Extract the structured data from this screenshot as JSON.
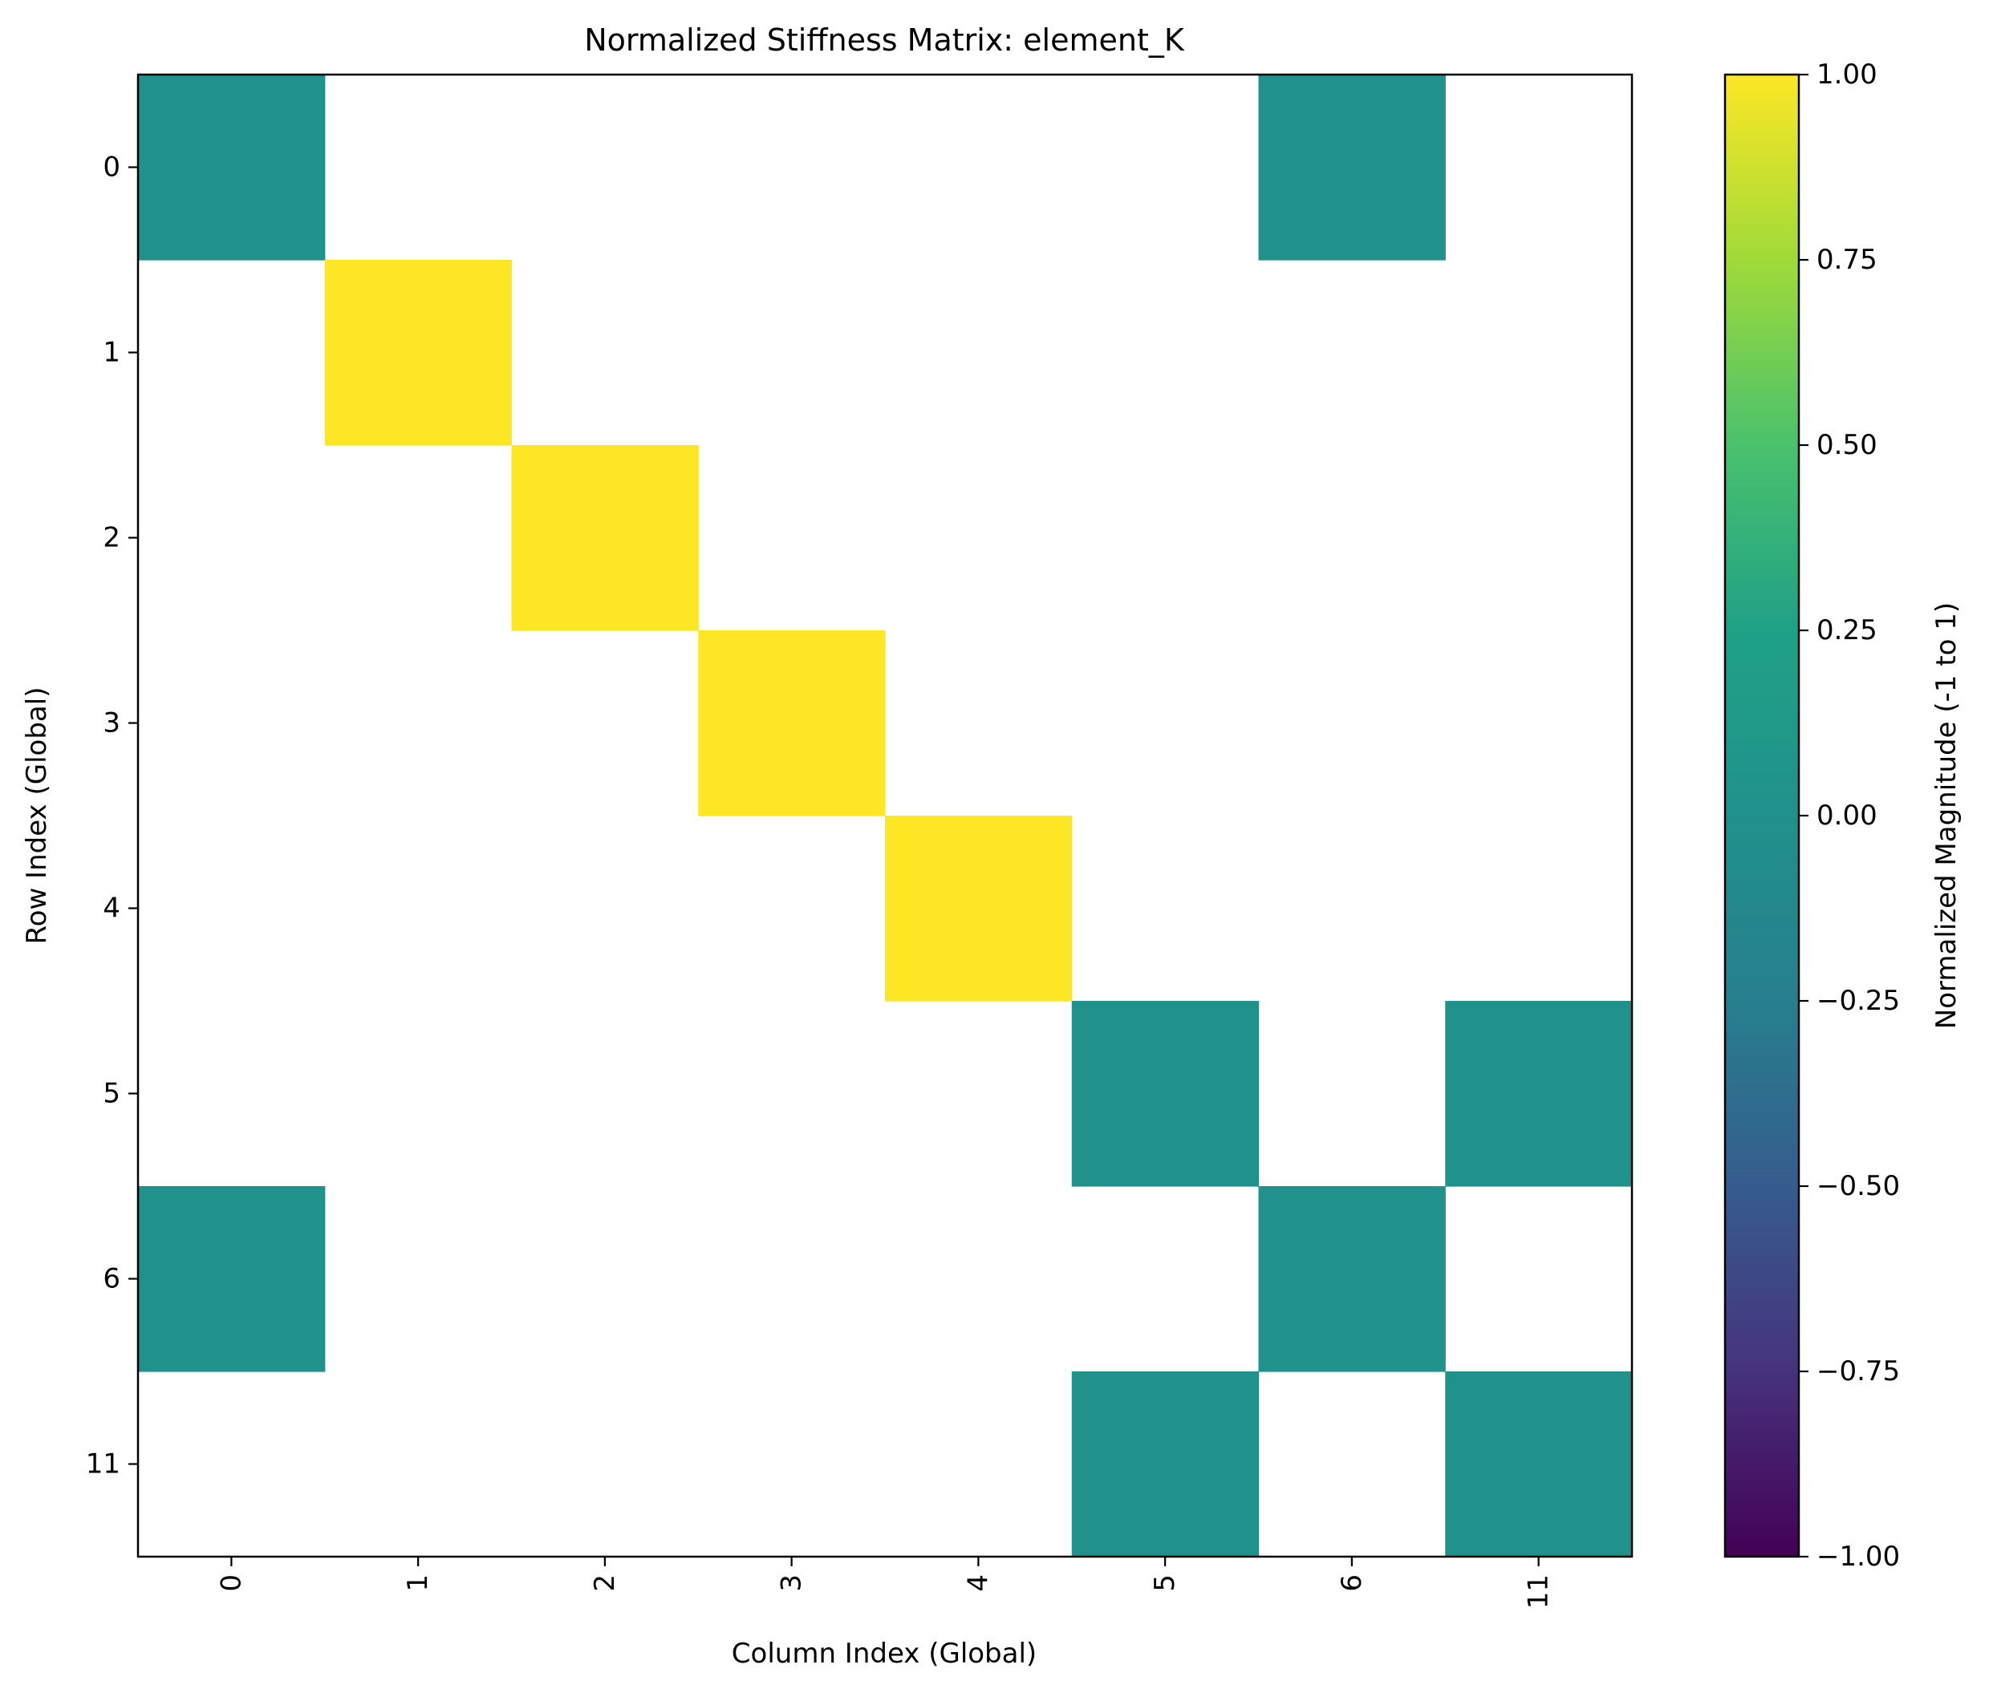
{
  "chart_data": {
    "type": "heatmap",
    "title": "Normalized Stiffness Matrix: element_K",
    "xlabel": "Column Index (Global)",
    "ylabel": "Row Index (Global)",
    "x_categories": [
      "0",
      "1",
      "2",
      "3",
      "4",
      "5",
      "6",
      "11"
    ],
    "y_categories": [
      "0",
      "1",
      "2",
      "3",
      "4",
      "5",
      "6",
      "11"
    ],
    "values": [
      [
        0,
        null,
        null,
        null,
        null,
        null,
        0,
        null
      ],
      [
        null,
        1,
        null,
        null,
        null,
        null,
        null,
        null
      ],
      [
        null,
        null,
        1,
        null,
        null,
        null,
        null,
        null
      ],
      [
        null,
        null,
        null,
        1,
        null,
        null,
        null,
        null
      ],
      [
        null,
        null,
        null,
        null,
        1,
        null,
        null,
        null
      ],
      [
        null,
        null,
        null,
        null,
        null,
        0,
        null,
        0
      ],
      [
        0,
        null,
        null,
        null,
        null,
        null,
        0,
        null
      ],
      [
        null,
        null,
        null,
        null,
        null,
        0,
        null,
        0
      ]
    ],
    "colormap": "viridis",
    "vmin": -1,
    "vmax": 1,
    "colorbar": {
      "label": "Normalized Magnitude (-1 to 1)",
      "ticks": [
        1.0,
        0.75,
        0.5,
        0.25,
        0.0,
        -0.25,
        -0.5,
        -0.75,
        -1.0
      ],
      "tick_labels": [
        "1.00",
        "0.75",
        "0.50",
        "0.25",
        "0.00",
        "−0.25",
        "−0.50",
        "−0.75",
        "−1.00"
      ]
    },
    "x_tick_rotation": "vertical",
    "grid": false
  }
}
